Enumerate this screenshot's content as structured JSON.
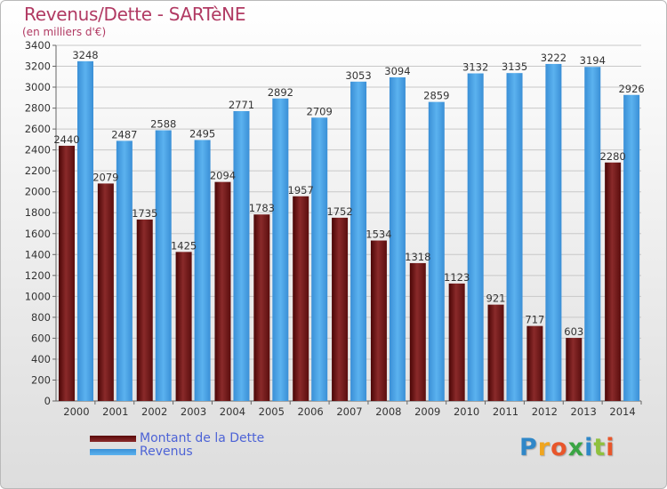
{
  "chart_data": {
    "type": "bar",
    "title": "Revenus/Dette - SARTèNE",
    "subtitle": "(en milliers d'€)",
    "categories": [
      "2000",
      "2001",
      "2002",
      "2003",
      "2004",
      "2005",
      "2006",
      "2007",
      "2008",
      "2009",
      "2010",
      "2011",
      "2012",
      "2013",
      "2014"
    ],
    "series": [
      {
        "name": "Montant de la Dette",
        "color": "#7a1a1a",
        "values": [
          2440,
          2079,
          1735,
          1425,
          2094,
          1783,
          1957,
          1752,
          1534,
          1318,
          1123,
          921,
          717,
          603,
          2280
        ]
      },
      {
        "name": "Revenus",
        "color": "#4aa3e6",
        "values": [
          3248,
          2487,
          2588,
          2495,
          2771,
          2892,
          2709,
          3053,
          3094,
          2859,
          3132,
          3135,
          3222,
          3194,
          2926
        ]
      }
    ],
    "ylim": [
      0,
      3400
    ],
    "ytick_step": 200,
    "grid": true,
    "legend_position": "bottom-left"
  },
  "logo": {
    "letters": [
      "P",
      "r",
      "o",
      "x",
      "i",
      "t",
      "i"
    ],
    "colors": [
      "#2f87c8",
      "#f0a51e",
      "#e8562b",
      "#3aa544",
      "#2f87c8",
      "#8fc13e",
      "#e8562b"
    ]
  }
}
